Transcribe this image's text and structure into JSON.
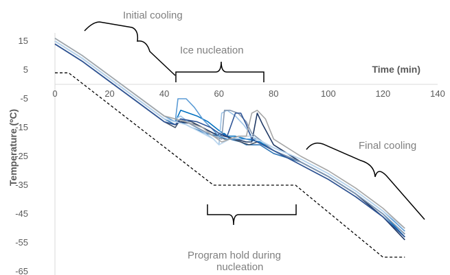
{
  "chart_data": {
    "type": "line",
    "xlabel": "Time (min)",
    "ylabel": "Temperature (ºC)",
    "xlim": [
      0,
      140
    ],
    "ylim": [
      -65,
      15
    ],
    "x_ticks": [
      0,
      20,
      40,
      60,
      80,
      100,
      120,
      140
    ],
    "y_ticks": [
      15,
      5,
      -5,
      -15,
      -25,
      -35,
      -45,
      -55,
      -65
    ],
    "grid": false,
    "legend": "none",
    "annotations": [
      {
        "id": "initial",
        "text": "Initial cooling"
      },
      {
        "id": "ice",
        "text": "Ice nucleation"
      },
      {
        "id": "final",
        "text": "Final cooling"
      },
      {
        "id": "hold1",
        "text": "Program hold during"
      },
      {
        "id": "hold2",
        "text": "nucleation"
      }
    ],
    "program": {
      "style": "dashed",
      "color": "#000000",
      "points": [
        [
          0,
          4
        ],
        [
          5,
          4
        ],
        [
          58,
          -35
        ],
        [
          88,
          -35
        ],
        [
          120,
          -60
        ],
        [
          128,
          -60
        ]
      ]
    },
    "series": [
      {
        "color": "#2e75b6",
        "points": [
          [
            0,
            15
          ],
          [
            10,
            9
          ],
          [
            20,
            2
          ],
          [
            30,
            -5
          ],
          [
            40,
            -12
          ],
          [
            44,
            -14
          ],
          [
            46,
            -13
          ],
          [
            50,
            -15
          ],
          [
            55,
            -17
          ],
          [
            60,
            -18
          ],
          [
            62,
            -17
          ],
          [
            64,
            -19
          ],
          [
            68,
            -20
          ],
          [
            70,
            -21
          ],
          [
            75,
            -21
          ],
          [
            80,
            -24
          ],
          [
            90,
            -27
          ],
          [
            100,
            -32
          ],
          [
            110,
            -38
          ],
          [
            120,
            -45
          ],
          [
            128,
            -52
          ]
        ]
      },
      {
        "color": "#44546a",
        "points": [
          [
            0,
            14
          ],
          [
            10,
            8
          ],
          [
            20,
            1
          ],
          [
            30,
            -6
          ],
          [
            40,
            -13
          ],
          [
            44,
            -15
          ],
          [
            46,
            -12
          ],
          [
            50,
            -13
          ],
          [
            56,
            -16
          ],
          [
            60,
            -18
          ],
          [
            62,
            -19
          ],
          [
            65,
            -19
          ],
          [
            68,
            -20
          ],
          [
            71,
            -21
          ],
          [
            74,
            -20
          ],
          [
            80,
            -23
          ],
          [
            90,
            -28
          ],
          [
            100,
            -33
          ],
          [
            110,
            -39
          ],
          [
            120,
            -46
          ],
          [
            128,
            -53
          ]
        ]
      },
      {
        "color": "#0070c0",
        "points": [
          [
            0,
            15
          ],
          [
            10,
            9
          ],
          [
            20,
            2
          ],
          [
            30,
            -5
          ],
          [
            40,
            -12
          ],
          [
            44,
            -13
          ],
          [
            46,
            -9
          ],
          [
            52,
            -11
          ],
          [
            56,
            -13
          ],
          [
            60,
            -16
          ],
          [
            63,
            -18
          ],
          [
            66,
            -18
          ],
          [
            70,
            -19
          ],
          [
            75,
            -20
          ],
          [
            80,
            -23
          ],
          [
            90,
            -27
          ],
          [
            100,
            -32
          ],
          [
            110,
            -38
          ],
          [
            120,
            -45
          ],
          [
            128,
            -53
          ]
        ]
      },
      {
        "color": "#1f3864",
        "points": [
          [
            0,
            14
          ],
          [
            10,
            8
          ],
          [
            20,
            1
          ],
          [
            30,
            -6
          ],
          [
            40,
            -13
          ],
          [
            44,
            -14
          ],
          [
            46,
            -13
          ],
          [
            52,
            -14
          ],
          [
            58,
            -17
          ],
          [
            62,
            -18
          ],
          [
            66,
            -19
          ],
          [
            70,
            -20
          ],
          [
            72,
            -20
          ],
          [
            74,
            -10
          ],
          [
            76,
            -14
          ],
          [
            80,
            -21
          ],
          [
            90,
            -27
          ],
          [
            100,
            -32
          ],
          [
            110,
            -38
          ],
          [
            120,
            -46
          ],
          [
            128,
            -54
          ]
        ]
      },
      {
        "color": "#9dc3e6",
        "points": [
          [
            0,
            16
          ],
          [
            10,
            10
          ],
          [
            20,
            3
          ],
          [
            30,
            -4
          ],
          [
            40,
            -11
          ],
          [
            44,
            -12
          ],
          [
            46,
            -11
          ],
          [
            50,
            -14
          ],
          [
            55,
            -17
          ],
          [
            58,
            -19
          ],
          [
            60,
            -21
          ],
          [
            61,
            -10
          ],
          [
            63,
            -9
          ],
          [
            66,
            -11
          ],
          [
            69,
            -14
          ],
          [
            72,
            -18
          ],
          [
            76,
            -20
          ],
          [
            80,
            -22
          ],
          [
            90,
            -26
          ],
          [
            100,
            -31
          ],
          [
            110,
            -37
          ],
          [
            120,
            -44
          ],
          [
            128,
            -50
          ]
        ]
      },
      {
        "color": "#8497b0",
        "points": [
          [
            0,
            15
          ],
          [
            10,
            9
          ],
          [
            20,
            2
          ],
          [
            30,
            -5
          ],
          [
            40,
            -12
          ],
          [
            44,
            -13
          ],
          [
            46,
            -12
          ],
          [
            52,
            -15
          ],
          [
            58,
            -18
          ],
          [
            61,
            -19
          ],
          [
            62,
            -9
          ],
          [
            64,
            -9
          ],
          [
            67,
            -10
          ],
          [
            70,
            -13
          ],
          [
            72,
            -17
          ],
          [
            76,
            -20
          ],
          [
            80,
            -23
          ],
          [
            90,
            -27
          ],
          [
            100,
            -32
          ],
          [
            110,
            -38
          ],
          [
            120,
            -45
          ],
          [
            128,
            -52
          ]
        ]
      },
      {
        "color": "#5b9bd5",
        "points": [
          [
            0,
            16
          ],
          [
            10,
            10
          ],
          [
            20,
            3
          ],
          [
            30,
            -4
          ],
          [
            40,
            -11
          ],
          [
            44,
            -13
          ],
          [
            45,
            -5
          ],
          [
            48,
            -5
          ],
          [
            51,
            -8
          ],
          [
            54,
            -12
          ],
          [
            57,
            -15
          ],
          [
            60,
            -18
          ],
          [
            63,
            -19
          ],
          [
            66,
            -19
          ],
          [
            70,
            -19
          ],
          [
            74,
            -19
          ],
          [
            80,
            -22
          ],
          [
            90,
            -26
          ],
          [
            100,
            -31
          ],
          [
            110,
            -37
          ],
          [
            120,
            -44
          ],
          [
            128,
            -51
          ]
        ]
      },
      {
        "color": "#2f5597",
        "points": [
          [
            0,
            14
          ],
          [
            10,
            8
          ],
          [
            20,
            1
          ],
          [
            30,
            -6
          ],
          [
            40,
            -13
          ],
          [
            44,
            -14
          ],
          [
            46,
            -12
          ],
          [
            52,
            -13
          ],
          [
            57,
            -15
          ],
          [
            60,
            -17
          ],
          [
            63,
            -18
          ],
          [
            66,
            -10
          ],
          [
            68,
            -10
          ],
          [
            70,
            -14
          ],
          [
            72,
            -19
          ],
          [
            76,
            -21
          ],
          [
            80,
            -23
          ],
          [
            90,
            -28
          ],
          [
            100,
            -33
          ],
          [
            110,
            -39
          ],
          [
            120,
            -46
          ],
          [
            128,
            -53
          ]
        ]
      },
      {
        "color": "#bdd7ee",
        "points": [
          [
            0,
            15
          ],
          [
            10,
            9
          ],
          [
            20,
            2
          ],
          [
            30,
            -5
          ],
          [
            40,
            -12
          ],
          [
            44,
            -13
          ],
          [
            48,
            -14
          ],
          [
            54,
            -17
          ],
          [
            58,
            -19
          ],
          [
            60,
            -21
          ],
          [
            62,
            -20
          ],
          [
            64,
            -19
          ],
          [
            68,
            -18
          ],
          [
            72,
            -18
          ],
          [
            76,
            -20
          ],
          [
            80,
            -22
          ],
          [
            90,
            -26
          ],
          [
            100,
            -31
          ],
          [
            110,
            -37
          ],
          [
            120,
            -44
          ],
          [
            128,
            -50
          ]
        ]
      },
      {
        "color": "#a6a6a6",
        "points": [
          [
            0,
            16
          ],
          [
            10,
            10
          ],
          [
            20,
            3
          ],
          [
            30,
            -4
          ],
          [
            40,
            -11
          ],
          [
            44,
            -12
          ],
          [
            48,
            -13
          ],
          [
            54,
            -15
          ],
          [
            58,
            -18
          ],
          [
            61,
            -20
          ],
          [
            64,
            -19
          ],
          [
            67,
            -18
          ],
          [
            70,
            -18
          ],
          [
            72,
            -10
          ],
          [
            74,
            -9
          ],
          [
            77,
            -12
          ],
          [
            80,
            -19
          ],
          [
            90,
            -25
          ],
          [
            100,
            -30
          ],
          [
            110,
            -36
          ],
          [
            120,
            -43
          ],
          [
            128,
            -50
          ]
        ]
      }
    ]
  }
}
